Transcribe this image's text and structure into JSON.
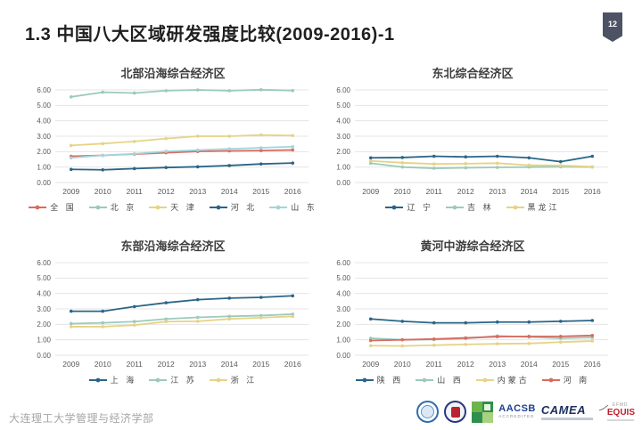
{
  "slide": {
    "title": "1.3  中国八大区域研发强度比较(2009-2016)-1",
    "page_number": "12",
    "footer": "大连理工大学管理与经济学部"
  },
  "palette": {
    "dark_blue": "#2a6586",
    "light_teal": "#9ccabc",
    "yellow": "#e6d385",
    "salmon_red": "#d96b60",
    "light_cyan": "#a2d5dc",
    "gridline": "#e4e4e4",
    "axis_text": "#595959",
    "badge_bg": "#4d5365"
  },
  "accreditation": {
    "aacsb_main": "AACSB",
    "aacsb_sub": "ACCREDITED",
    "camea_main": "CAMEA",
    "equis_efmd": "EFMD",
    "equis_main": "EQUIS"
  },
  "chart_data": [
    {
      "type": "line",
      "title": "北部沿海综合经济区",
      "categories": [
        "2009",
        "2010",
        "2011",
        "2012",
        "2013",
        "2014",
        "2015",
        "2016"
      ],
      "ylim": [
        0,
        6
      ],
      "y_ticks": [
        "0.00",
        "1.00",
        "2.00",
        "3.00",
        "4.00",
        "5.00",
        "6.00"
      ],
      "grid": true,
      "legend_position": "bottom",
      "series": [
        {
          "name": "全 国",
          "color": "#d96b60",
          "values": [
            1.7,
            1.76,
            1.84,
            1.93,
            2.01,
            2.05,
            2.07,
            2.11
          ]
        },
        {
          "name": "北 京",
          "color": "#9ccabc",
          "values": [
            5.55,
            5.85,
            5.8,
            5.95,
            6.0,
            5.95,
            6.01,
            5.96
          ]
        },
        {
          "name": "天 津",
          "color": "#e6d385",
          "values": [
            2.4,
            2.52,
            2.66,
            2.85,
            3.0,
            3.0,
            3.08,
            3.04
          ]
        },
        {
          "name": "河 北",
          "color": "#2a6586",
          "values": [
            0.85,
            0.82,
            0.9,
            0.97,
            1.02,
            1.1,
            1.2,
            1.26
          ]
        },
        {
          "name": "山 东",
          "color": "#a2d5dc",
          "values": [
            1.6,
            1.76,
            1.86,
            2.02,
            2.1,
            2.18,
            2.25,
            2.32
          ]
        }
      ]
    },
    {
      "type": "line",
      "title": "东北综合经济区",
      "categories": [
        "2009",
        "2010",
        "2011",
        "2012",
        "2013",
        "2014",
        "2015",
        "2016"
      ],
      "ylim": [
        0,
        6
      ],
      "y_ticks": [
        "0.00",
        "1.00",
        "2.00",
        "3.00",
        "4.00",
        "5.00",
        "6.00"
      ],
      "grid": true,
      "legend_position": "bottom",
      "series": [
        {
          "name": "辽 宁",
          "color": "#2a6586",
          "values": [
            1.6,
            1.62,
            1.7,
            1.66,
            1.7,
            1.6,
            1.35,
            1.7
          ]
        },
        {
          "name": "吉 林",
          "color": "#9ccabc",
          "values": [
            1.25,
            1.0,
            0.92,
            0.95,
            0.98,
            1.0,
            1.02,
            1.0
          ]
        },
        {
          "name": "黑龙江",
          "color": "#e6d385",
          "values": [
            1.4,
            1.28,
            1.2,
            1.22,
            1.25,
            1.12,
            1.1,
            1.02
          ]
        }
      ]
    },
    {
      "type": "line",
      "title": "东部沿海综合经济区",
      "categories": [
        "2009",
        "2010",
        "2011",
        "2012",
        "2013",
        "2014",
        "2015",
        "2016"
      ],
      "ylim": [
        0,
        6
      ],
      "y_ticks": [
        "0.00",
        "1.00",
        "2.00",
        "3.00",
        "4.00",
        "5.00",
        "6.00"
      ],
      "grid": true,
      "legend_position": "bottom",
      "series": [
        {
          "name": "上 海",
          "color": "#2a6586",
          "values": [
            2.85,
            2.85,
            3.15,
            3.4,
            3.6,
            3.7,
            3.75,
            3.85
          ]
        },
        {
          "name": "江 苏",
          "color": "#9ccabc",
          "values": [
            2.05,
            2.1,
            2.18,
            2.35,
            2.45,
            2.52,
            2.57,
            2.66
          ]
        },
        {
          "name": "浙 江",
          "color": "#e6d385",
          "values": [
            1.85,
            1.85,
            1.95,
            2.18,
            2.2,
            2.35,
            2.43,
            2.52
          ]
        }
      ]
    },
    {
      "type": "line",
      "title": "黄河中游综合经济区",
      "categories": [
        "2009",
        "2010",
        "2011",
        "2012",
        "2013",
        "2014",
        "2015",
        "2016"
      ],
      "ylim": [
        0,
        6
      ],
      "y_ticks": [
        "0.00",
        "1.00",
        "2.00",
        "3.00",
        "4.00",
        "5.00",
        "6.00"
      ],
      "grid": true,
      "legend_position": "bottom",
      "series": [
        {
          "name": "陕 西",
          "color": "#2a6586",
          "values": [
            2.35,
            2.2,
            2.1,
            2.1,
            2.15,
            2.15,
            2.2,
            2.25
          ]
        },
        {
          "name": "山 西",
          "color": "#9ccabc",
          "values": [
            1.1,
            1.0,
            1.02,
            1.08,
            1.25,
            1.18,
            1.1,
            1.15
          ]
        },
        {
          "name": "内蒙古",
          "color": "#e6d385",
          "values": [
            0.62,
            0.6,
            0.65,
            0.7,
            0.74,
            0.76,
            0.85,
            0.92
          ]
        },
        {
          "name": "河 南",
          "color": "#d96b60",
          "values": [
            0.95,
            1.0,
            1.05,
            1.12,
            1.2,
            1.22,
            1.22,
            1.28
          ]
        }
      ]
    }
  ]
}
